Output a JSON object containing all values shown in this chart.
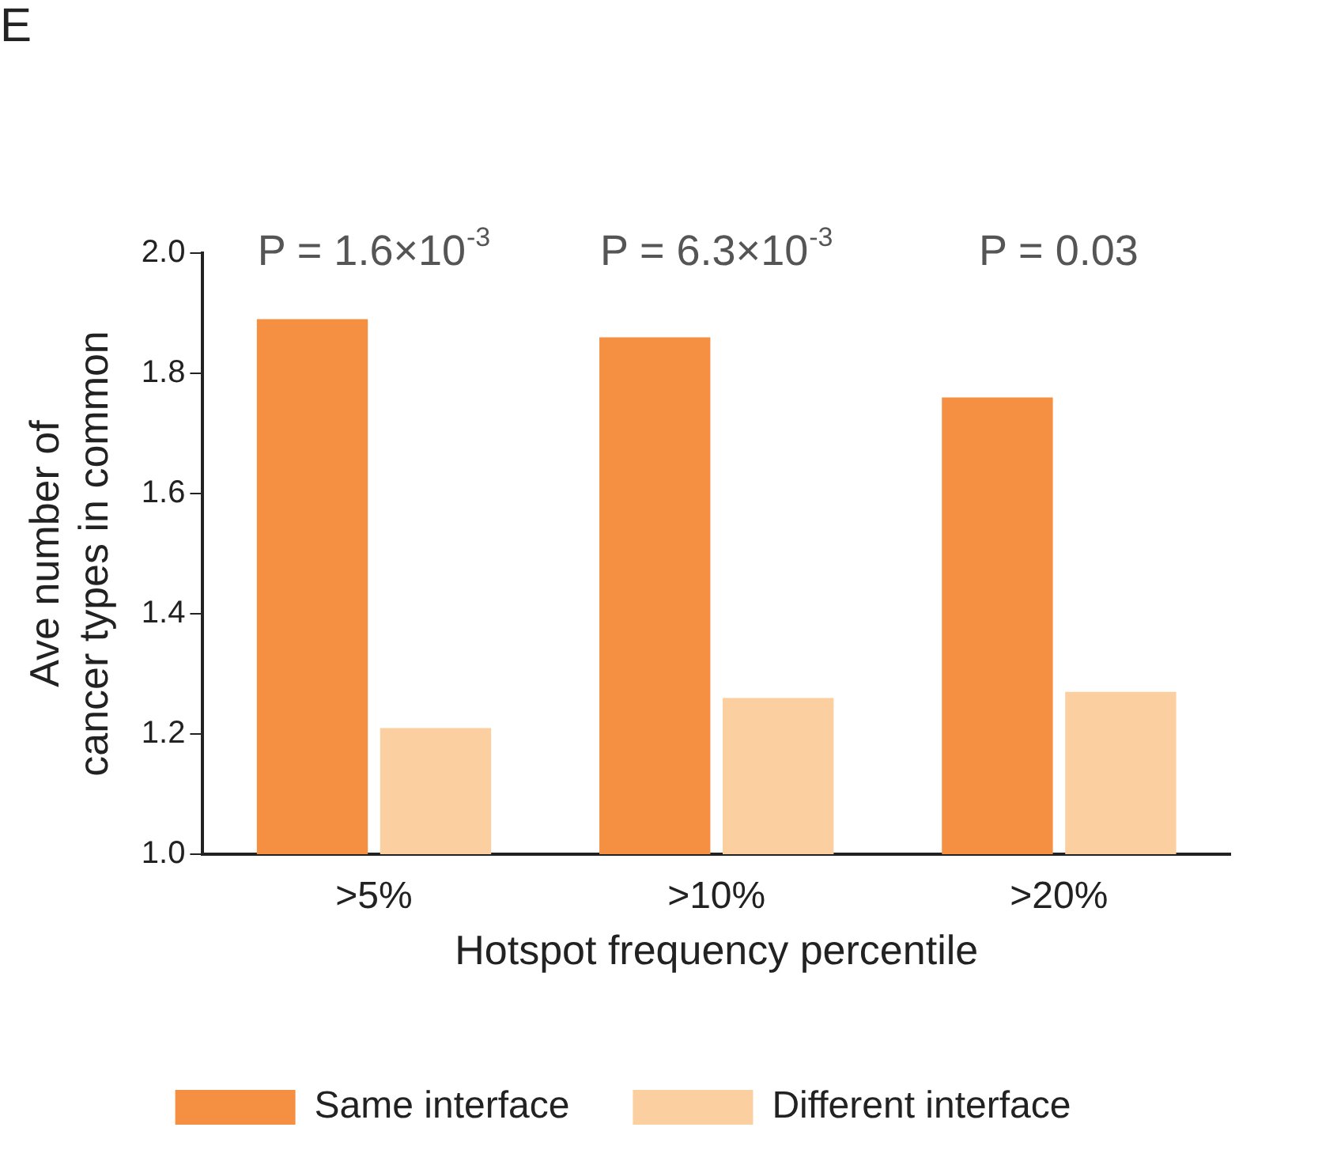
{
  "chart_data": {
    "type": "bar",
    "xlabel": "Hotspot frequency percentile",
    "ylabel": "Ave number of\ncancer types in common",
    "categories": [
      ">5%",
      ">10%",
      ">20%"
    ],
    "series": [
      {
        "name": "Same interface",
        "color": "#f58f42",
        "values": [
          1.89,
          1.86,
          1.76
        ]
      },
      {
        "name": "Different interface",
        "color": "#fbcf9f",
        "values": [
          1.21,
          1.26,
          1.27
        ]
      }
    ],
    "ylim": [
      1.0,
      2.0
    ],
    "yticks": [
      {
        "value": 1.0,
        "label": "1.0"
      },
      {
        "value": 1.2,
        "label": "1.2"
      },
      {
        "value": 1.4,
        "label": "1.4"
      },
      {
        "value": 1.6,
        "label": "1.6"
      },
      {
        "value": 1.8,
        "label": "1.8"
      },
      {
        "value": 2.0,
        "label": "2.0"
      }
    ],
    "grid": false,
    "legend": "bottom",
    "annotations": [
      "E",
      "P = 1.6×10$^{-3}$",
      "P = 6.3×10$^{-3}$",
      "P = 0.03"
    ]
  }
}
